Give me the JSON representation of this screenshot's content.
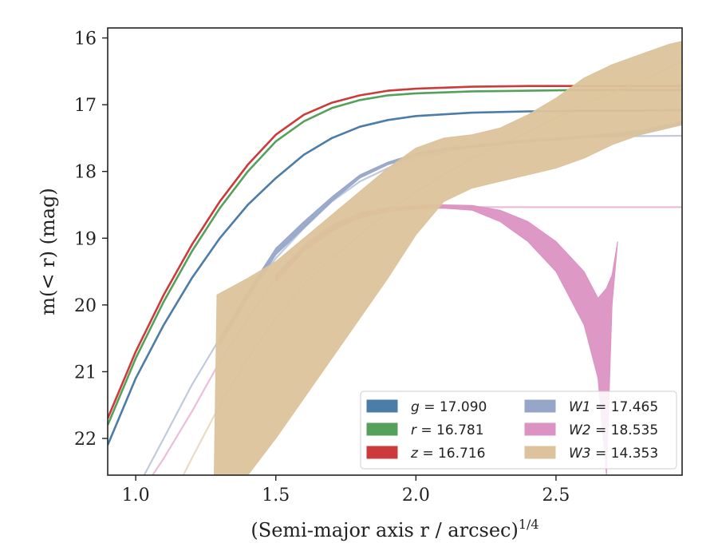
{
  "chart_data": {
    "type": "line",
    "xlabel": "(Semi-major axis r / arcsec)",
    "xlabel_sup": "1/4",
    "ylabel": "m(< r) (mag)",
    "xlim": [
      0.9,
      2.95
    ],
    "ylim": [
      22.55,
      15.85
    ],
    "y_inverted": true,
    "grid": false,
    "legend_position": "lower-right",
    "x_ticks": [
      1.0,
      1.5,
      2.0,
      2.5
    ],
    "x_tick_labels": [
      "1.0",
      "1.5",
      "2.0",
      "2.5"
    ],
    "y_ticks": [
      16,
      17,
      18,
      19,
      20,
      21,
      22
    ],
    "y_tick_labels": [
      "16",
      "17",
      "18",
      "19",
      "20",
      "21",
      "22"
    ],
    "legend": [
      {
        "band": "g",
        "value": "17.090",
        "color": "#4c7ca8"
      },
      {
        "band": "r",
        "value": "16.781",
        "color": "#55a05a"
      },
      {
        "band": "z",
        "value": "16.716",
        "color": "#cc3b3b"
      },
      {
        "band": "W1",
        "value": "17.465",
        "color": "#96a6c8"
      },
      {
        "band": "W2",
        "value": "18.535",
        "color": "#dc92c2"
      },
      {
        "band": "W3",
        "value": "14.353",
        "color": "#dcc39b"
      }
    ],
    "series": [
      {
        "id": "g",
        "color": "#4c7ca8",
        "kind": "line",
        "width": 2.6,
        "x": [
          0.9,
          1.0,
          1.1,
          1.2,
          1.3,
          1.4,
          1.5,
          1.6,
          1.7,
          1.8,
          1.9,
          2.0,
          2.2,
          2.4,
          2.6,
          2.8,
          2.95
        ],
        "y": [
          22.1,
          21.1,
          20.3,
          19.6,
          19.0,
          18.5,
          18.1,
          17.75,
          17.5,
          17.33,
          17.23,
          17.17,
          17.12,
          17.1,
          17.09,
          17.09,
          17.08
        ]
      },
      {
        "id": "r",
        "color": "#55a05a",
        "kind": "line",
        "width": 2.6,
        "x": [
          0.9,
          1.0,
          1.1,
          1.2,
          1.3,
          1.4,
          1.5,
          1.6,
          1.7,
          1.8,
          1.9,
          2.0,
          2.2,
          2.4,
          2.6,
          2.8,
          2.95
        ],
        "y": [
          21.8,
          20.8,
          19.95,
          19.2,
          18.55,
          18.0,
          17.55,
          17.25,
          17.05,
          16.93,
          16.86,
          16.83,
          16.8,
          16.79,
          16.78,
          16.78,
          16.78
        ]
      },
      {
        "id": "z",
        "color": "#cc3b3b",
        "kind": "line",
        "width": 2.6,
        "x": [
          0.9,
          1.0,
          1.1,
          1.2,
          1.3,
          1.4,
          1.5,
          1.6,
          1.7,
          1.8,
          1.9,
          2.0,
          2.2,
          2.4,
          2.6,
          2.8,
          2.95
        ],
        "y": [
          21.7,
          20.7,
          19.85,
          19.1,
          18.45,
          17.9,
          17.45,
          17.15,
          16.97,
          16.86,
          16.79,
          16.76,
          16.73,
          16.72,
          16.72,
          16.72,
          16.72
        ]
      },
      {
        "id": "W1-faint",
        "color": "#96a6c8",
        "kind": "line",
        "width": 2.2,
        "opacity": 0.6,
        "x": [
          1.03,
          1.1,
          1.2,
          1.3,
          1.4,
          1.5,
          1.6,
          1.7,
          1.8,
          1.9,
          2.0,
          2.2,
          2.4,
          2.6,
          2.8,
          2.95
        ],
        "y": [
          22.55,
          22.0,
          21.2,
          20.5,
          19.85,
          19.3,
          18.85,
          18.45,
          18.15,
          17.95,
          17.8,
          17.62,
          17.53,
          17.49,
          17.47,
          17.465
        ]
      },
      {
        "id": "W1-band",
        "color": "#96a6c8",
        "kind": "band",
        "opacity": 0.95,
        "x": [
          1.3,
          1.4,
          1.5,
          1.6,
          1.7,
          1.8,
          1.9,
          2.0,
          2.1,
          2.2,
          2.4,
          2.6,
          2.8,
          2.95
        ],
        "y_low": [
          20.6,
          19.9,
          19.25,
          18.85,
          18.45,
          18.1,
          17.9,
          17.77,
          17.69,
          17.64,
          17.56,
          17.5,
          17.45,
          17.3
        ],
        "y_high": [
          20.5,
          19.8,
          19.15,
          18.75,
          18.38,
          18.05,
          17.86,
          17.73,
          17.65,
          17.61,
          17.53,
          17.47,
          17.38,
          17.25
        ]
      },
      {
        "id": "W2-faint",
        "color": "#dc92c2",
        "kind": "line",
        "width": 2.2,
        "opacity": 0.6,
        "x": [
          1.06,
          1.1,
          1.2,
          1.3,
          1.4,
          1.5,
          1.6,
          1.7,
          1.8,
          1.9,
          2.0,
          2.2,
          2.4,
          2.6,
          2.8,
          2.95
        ],
        "y": [
          22.55,
          22.3,
          21.6,
          20.85,
          20.2,
          19.6,
          19.15,
          18.85,
          18.65,
          18.57,
          18.54,
          18.535,
          18.535,
          18.535,
          18.535,
          18.535
        ]
      },
      {
        "id": "W2-band",
        "color": "#dc92c2",
        "kind": "band",
        "opacity": 0.95,
        "x": [
          1.5,
          1.6,
          1.7,
          1.8,
          1.9,
          2.0,
          2.1,
          2.2,
          2.3,
          2.4,
          2.5,
          2.6,
          2.65,
          2.68,
          2.7,
          2.72
        ],
        "y_low": [
          19.65,
          19.2,
          18.9,
          18.7,
          18.6,
          18.56,
          18.55,
          18.58,
          18.75,
          19.05,
          19.5,
          20.3,
          21.1,
          22.55,
          20.0,
          19.05
        ],
        "y_high": [
          19.55,
          19.1,
          18.8,
          18.62,
          18.54,
          18.51,
          18.5,
          18.51,
          18.58,
          18.75,
          19.05,
          19.5,
          19.9,
          19.75,
          19.55,
          19.05
        ]
      },
      {
        "id": "W3-faint",
        "color": "#dcc39b",
        "kind": "line",
        "width": 2.2,
        "opacity": 0.6,
        "x": [
          1.17,
          1.2,
          1.3,
          1.4,
          1.5,
          1.6,
          1.7,
          1.8,
          1.9,
          2.0,
          2.2,
          2.4,
          2.6,
          2.8,
          2.95
        ],
        "y": [
          22.55,
          22.3,
          21.5,
          20.8,
          20.2,
          19.7,
          19.3,
          18.95,
          18.6,
          18.3,
          17.8,
          17.4,
          17.0,
          16.65,
          16.35
        ]
      },
      {
        "id": "W3-band",
        "color": "#dcc39b",
        "kind": "band",
        "opacity": 0.95,
        "x": [
          1.28,
          1.29,
          1.4,
          1.5,
          1.6,
          1.7,
          1.8,
          1.9,
          2.0,
          2.1,
          2.2,
          2.3,
          2.4,
          2.5,
          2.6,
          2.7,
          2.8,
          2.9,
          2.95
        ],
        "y_low": [
          22.55,
          22.55,
          22.55,
          22.0,
          21.4,
          20.8,
          20.2,
          19.6,
          18.95,
          18.45,
          18.25,
          18.15,
          18.05,
          17.95,
          17.8,
          17.6,
          17.45,
          17.35,
          17.3
        ],
        "y_high": [
          22.55,
          19.85,
          19.6,
          19.35,
          19.0,
          18.65,
          18.3,
          17.95,
          17.65,
          17.5,
          17.45,
          17.35,
          17.15,
          16.9,
          16.6,
          16.4,
          16.25,
          16.1,
          16.05
        ]
      }
    ]
  }
}
